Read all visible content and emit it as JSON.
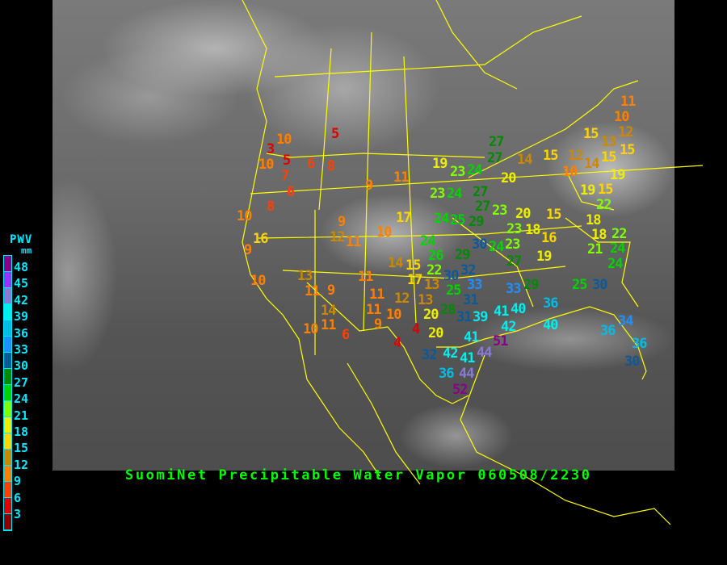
{
  "title": "SuomiNet Precipitable Water Vapor 060508/2230",
  "legend": {
    "title": "PWV",
    "unit": "mm",
    "labels": [
      "48",
      "45",
      "42",
      "39",
      "36",
      "33",
      "30",
      "27",
      "24",
      "21",
      "18",
      "15",
      "12",
      "9",
      "6",
      "3"
    ],
    "swatch_colors_top_to_bottom": [
      "#8b008b",
      "#9933ff",
      "#8a7ad8",
      "#00eeee",
      "#00bde8",
      "#1e8fff",
      "#0a5a9a",
      "#008a00",
      "#00d400",
      "#80ff00",
      "#eeee00",
      "#ffd400",
      "#cc8800",
      "#ff8000",
      "#ff4000",
      "#dd0000",
      "#8b0000"
    ]
  },
  "boundary_color": "#ffff00",
  "title_color": "#00ff00",
  "stations": [
    11,
    10,
    15,
    12,
    13,
    15,
    15,
    15,
    12,
    10,
    14,
    19,
    27,
    27,
    14,
    19,
    23,
    24,
    20,
    23,
    24,
    27,
    19,
    15,
    22,
    24,
    25,
    29,
    27,
    23,
    20,
    15,
    23,
    18,
    16,
    18,
    18,
    21,
    22,
    24,
    24,
    24,
    30,
    29,
    32,
    24,
    23,
    27,
    19,
    26,
    22,
    30,
    15,
    14,
    17,
    13,
    20,
    25,
    33,
    31,
    28,
    20,
    31,
    39,
    41,
    42,
    40,
    51,
    41,
    44,
    32,
    42,
    41,
    36,
    44,
    52,
    33,
    29,
    36,
    40,
    25,
    30,
    34,
    36,
    36,
    30,
    4,
    4,
    5,
    10,
    3,
    10,
    5,
    7,
    6,
    8,
    6,
    9,
    11,
    8,
    10,
    17,
    9,
    16,
    12,
    11,
    10,
    9,
    10,
    13,
    11,
    9,
    11,
    11,
    12,
    13,
    11,
    10,
    9,
    14,
    10,
    11,
    6
  ]
}
